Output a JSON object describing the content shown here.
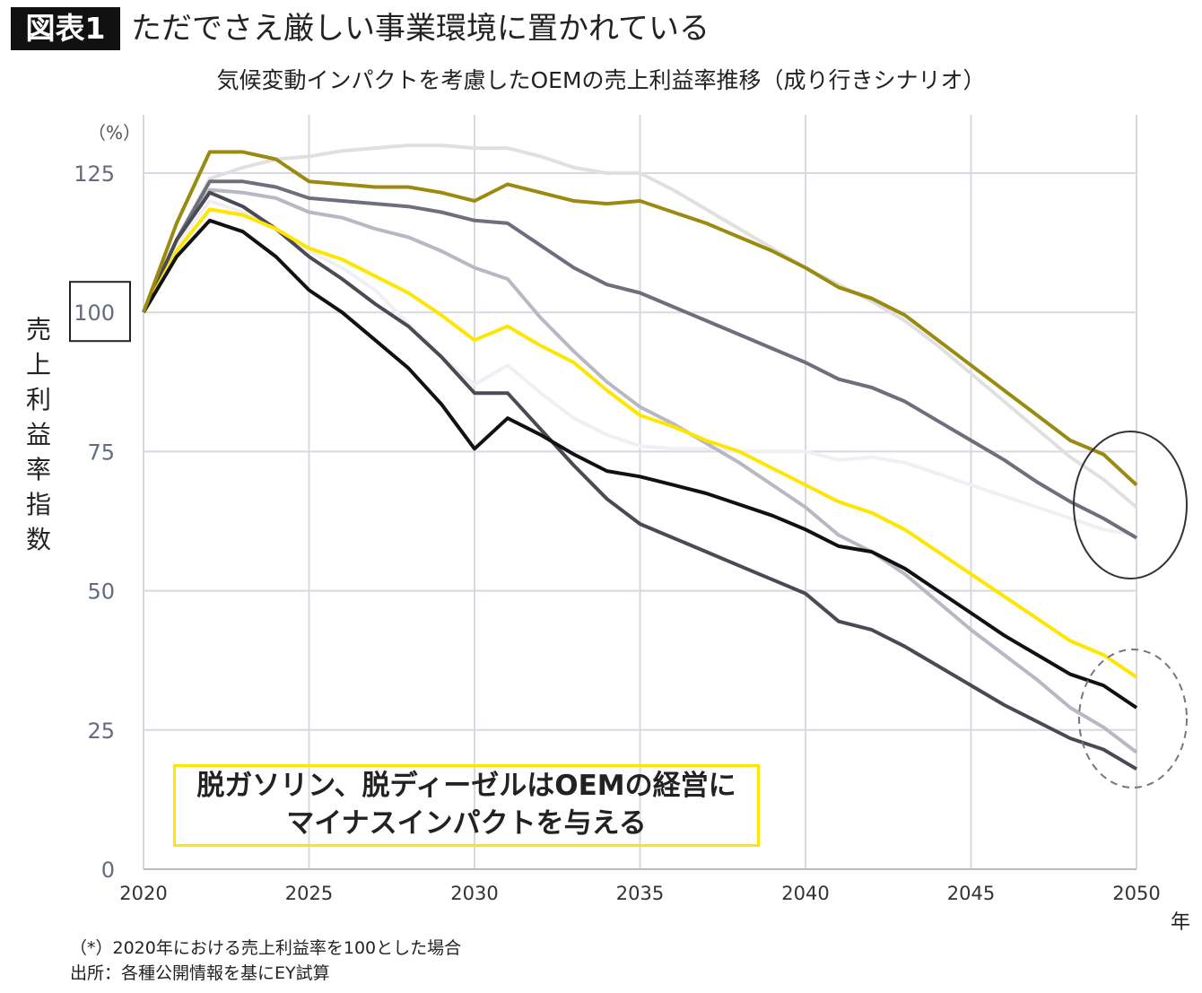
{
  "header": {
    "figure_label": "図表1",
    "title": "ただでさえ厳しい事業環境に置かれている"
  },
  "chart_data": {
    "type": "line",
    "title": "気候変動インパクトを考慮したOEMの売上利益率推移（成り行きシナリオ）",
    "ylabel": "売上利益率指数",
    "yunit": "（%）",
    "xunit": "年",
    "xlim": [
      2020,
      2050
    ],
    "ylim": [
      0,
      125
    ],
    "xticks": [
      2020,
      2025,
      2030,
      2035,
      2040,
      2045,
      2050
    ],
    "yticks": [
      0,
      25,
      50,
      75,
      100,
      125
    ],
    "grid": true,
    "highlighted_ytick": 100,
    "x": [
      2020,
      2021,
      2022,
      2023,
      2024,
      2025,
      2026,
      2027,
      2028,
      2029,
      2030,
      2031,
      2032,
      2033,
      2034,
      2035,
      2036,
      2037,
      2038,
      2039,
      2040,
      2041,
      2042,
      2043,
      2044,
      2045,
      2046,
      2047,
      2048,
      2049,
      2050
    ],
    "series": [
      {
        "color": "#f0f0f4",
        "values": [
          100,
          112,
          120,
          118,
          115,
          111,
          108,
          104,
          98,
          92,
          87,
          90.5,
          85.5,
          81,
          78,
          76,
          75.5,
          75.5,
          75,
          75,
          75,
          73.5,
          74,
          73,
          71,
          69,
          67,
          65,
          63,
          61,
          60
        ]
      },
      {
        "color": "#e0e0e0",
        "values": [
          100,
          113,
          124,
          126,
          127.5,
          128,
          129,
          129.5,
          130,
          130,
          129.5,
          129.5,
          128,
          126,
          125,
          125,
          122,
          118.5,
          115,
          111.5,
          108,
          105,
          102,
          98.5,
          94,
          89,
          84,
          79,
          74,
          70,
          65
        ]
      },
      {
        "color": "#b8b8c4",
        "values": [
          100,
          113,
          122,
          121.5,
          120.5,
          118,
          117,
          115,
          113.5,
          111,
          108,
          106,
          99,
          93,
          87.5,
          83,
          80,
          76.5,
          73,
          69,
          65,
          60,
          57,
          53,
          48,
          43,
          38.5,
          34,
          29,
          25.5,
          21
        ]
      },
      {
        "color": "#6e6e7c",
        "values": [
          100,
          113,
          123.5,
          123.5,
          122.5,
          120.5,
          120,
          119.5,
          119,
          118,
          116.5,
          116,
          112,
          108,
          105,
          103.5,
          101,
          98.5,
          96,
          93.5,
          91,
          88,
          86.5,
          84,
          80.5,
          77,
          73.5,
          69.5,
          66,
          63,
          59.5
        ]
      },
      {
        "color": "#4a4a55",
        "values": [
          100,
          113,
          121.5,
          119,
          115,
          110,
          106,
          101.5,
          97.5,
          92,
          85.5,
          85.5,
          79,
          72.5,
          66.5,
          62,
          59.5,
          57,
          54.5,
          52,
          49.5,
          44.5,
          43,
          40,
          36.5,
          33,
          29.5,
          26.5,
          23.5,
          21.5,
          18
        ]
      },
      {
        "color": "#FFE600",
        "values": [
          100,
          111,
          118.5,
          117.5,
          115,
          111.5,
          109.5,
          106.5,
          103.5,
          99.5,
          95,
          97.5,
          94,
          91,
          86,
          81.5,
          79.5,
          77,
          75,
          72,
          69,
          66,
          64,
          61,
          57,
          53,
          49,
          45,
          41,
          38.5,
          34.5
        ]
      },
      {
        "color": "#111111",
        "values": [
          100,
          110,
          116.5,
          114.5,
          110,
          104,
          100,
          95,
          90,
          83.5,
          75.5,
          81,
          78,
          74.5,
          71.5,
          70.5,
          69,
          67.5,
          65.5,
          63.5,
          61,
          58,
          57,
          54,
          50,
          46,
          42,
          38.5,
          35,
          33,
          29
        ]
      },
      {
        "color": "#9a8a10",
        "values": [
          100,
          116,
          128.8,
          128.8,
          127.5,
          123.5,
          123,
          122.5,
          122.5,
          121.5,
          120,
          123,
          121.5,
          120,
          119.5,
          120,
          118,
          116,
          113.5,
          111,
          108,
          104.5,
          102.5,
          99.5,
          95,
          90.5,
          86,
          81.5,
          77,
          74.5,
          69
        ]
      }
    ],
    "annotation": {
      "line1": "脱ガソリン、脱ディーゼルはOEMの経営に",
      "line2": "マイナスインパクトを与える",
      "border_color": "#FFE600"
    }
  },
  "footnotes": {
    "note": "（*）2020年における売上利益率を100とした場合",
    "source": "出所：各種公開情報を基にEY試算"
  }
}
